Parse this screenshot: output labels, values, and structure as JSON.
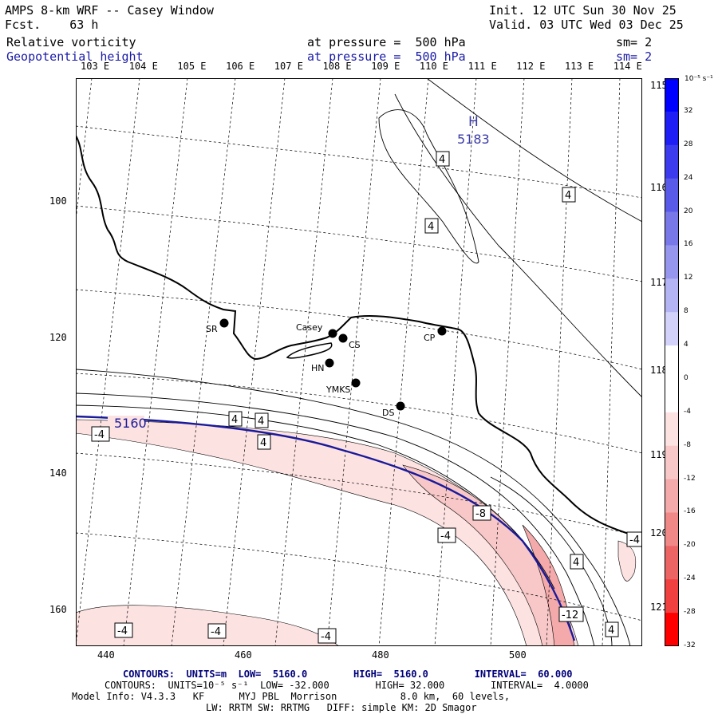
{
  "header": {
    "title": "AMPS 8-km WRF -- Casey Window",
    "forecast": "Fcst.    63 h",
    "init": "Init. 12 UTC Sun 30 Nov 25",
    "valid": "Valid. 03 UTC Wed 03 Dec 25",
    "field1": "Relative vorticity",
    "field1_level": "at pressure =  500 hPa",
    "field1_sm": "sm= 2",
    "field2": "Geopotential height",
    "field2_level": "at pressure =  500 hPa",
    "field2_sm": "sm= 2"
  },
  "lon_labels_top": [
    "103 E",
    "104 E",
    "105 E",
    "106 E",
    "107 E",
    "108 E",
    "109 E",
    "110 E",
    "111 E",
    "112 E",
    "113 E",
    "114 E"
  ],
  "lon_labels_right": [
    "115 E",
    "116 E",
    "117 E",
    "118 E",
    "119 E",
    "120 E",
    "121 E"
  ],
  "y_axis": [
    "100",
    "120",
    "140",
    "160"
  ],
  "x_axis": [
    "440",
    "460",
    "480",
    "500"
  ],
  "stations": [
    {
      "id": "SR",
      "label": "SR"
    },
    {
      "id": "Casey",
      "label": "Casey"
    },
    {
      "id": "CS",
      "label": "CS"
    },
    {
      "id": "CP",
      "label": "CP"
    },
    {
      "id": "HN",
      "label": "HN"
    },
    {
      "id": "YMKS",
      "label": "YMKS"
    },
    {
      "id": "DS",
      "label": "DS"
    }
  ],
  "high_center": {
    "letter": "H",
    "value": "5183"
  },
  "height_contour_label": "5160",
  "contour_labels": [
    "4",
    "4",
    "4",
    "4",
    "4",
    "4",
    "4",
    "4",
    "-4",
    "-4",
    "-4",
    "-4",
    "-4",
    "-4",
    "-8",
    "-12"
  ],
  "colorbar": {
    "units": "10⁻⁵ s⁻¹",
    "labels": [
      "32",
      "28",
      "24",
      "20",
      "16",
      "12",
      "8",
      "4",
      "0",
      "-4",
      "-8",
      "-12",
      "-16",
      "-20",
      "-24",
      "-28",
      "-32"
    ],
    "colors": [
      "#0000ff",
      "#1e1ef5",
      "#3c3cee",
      "#5a5ae8",
      "#7878e8",
      "#9696ee",
      "#b4b4f4",
      "#d2d2fa",
      "#ffffff",
      "#ffffff",
      "#fde2e2",
      "#f8c8c8",
      "#f4aaaa",
      "#f08888",
      "#ec6464",
      "#f04040",
      "#ff0000"
    ]
  },
  "footer": {
    "contours_height": "CONTOURS:  UNITS=m  LOW=  5160.0        HIGH=  5160.0        INTERVAL=  60.000",
    "contours_vort": "CONTOURS:  UNITS=10⁻⁵ s⁻¹  LOW= -32.000        HIGH= 32.000        INTERVAL=  4.0000",
    "model_info": "Model Info: V4.3.3   KF      MYJ PBL  Morrison           8.0 km,  60 levels,",
    "model_info2": "LW: RRTM SW: RRTMG   DIFF: simple KM: 2D Smagor"
  },
  "colors": {
    "height_contour": "#1a1a9a",
    "title_blue": "#1a1aa8"
  }
}
